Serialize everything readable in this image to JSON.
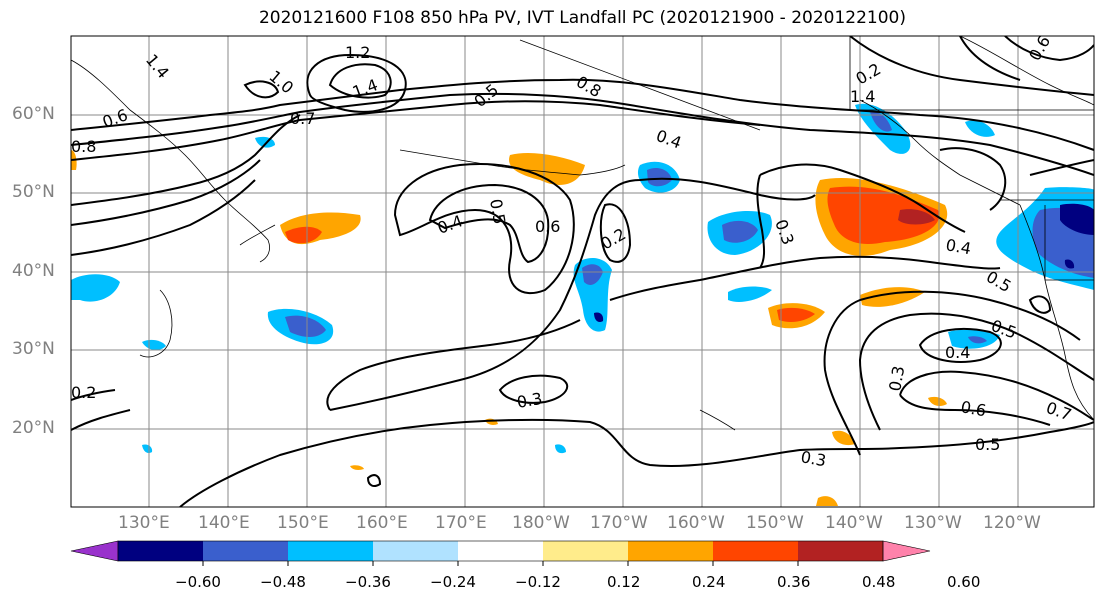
{
  "title": "2020121600 F108 850 hPa PV, IVT Landfall PC (2020121900 - 2020122100)",
  "map": {
    "lon_labels": [
      "130°E",
      "140°E",
      "150°E",
      "160°E",
      "170°E",
      "180°W",
      "170°W",
      "160°W",
      "150°W",
      "140°W",
      "130°W",
      "120°W"
    ],
    "lat_labels": [
      "60°N",
      "50°N",
      "40°N",
      "30°N",
      "20°N"
    ],
    "contour_labels": [
      "1.2",
      "1.4",
      "1.0",
      "1.4",
      "0.8",
      "0.6",
      "0.7",
      "0.5",
      "0.4",
      "0.4",
      "0.5",
      "0.6",
      "0.2",
      "0.3",
      "0.4",
      "0.5",
      "0.5",
      "0.4",
      "0.3",
      "0.6",
      "0.7",
      "0.5",
      "0.3",
      "0.3",
      "0.2",
      "0.2",
      "1.4",
      "0.8",
      "0.6"
    ]
  },
  "colorbar": {
    "tick_labels": [
      "−0.60",
      "−0.48",
      "−0.36",
      "−0.24",
      "−0.12",
      "0.12",
      "0.24",
      "0.36",
      "0.48",
      "0.60"
    ],
    "colors": [
      "#9932cc",
      "#000080",
      "#3a5fcd",
      "#00bfff",
      "#b0e2ff",
      "#ffffff",
      "#ffec8b",
      "#ffa500",
      "#ff4500",
      "#b22222",
      "#ff82ab"
    ]
  }
}
